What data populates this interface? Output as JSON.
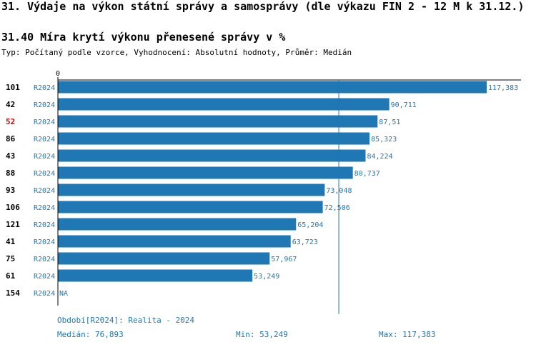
{
  "header": {
    "title": "31. Výdaje na výkon státní správy a samosprávy (dle výkazu FIN 2 - 12 M k 31.12.)",
    "subtitle": "31.40 Míra krytí výkonu přenesené správy v %",
    "meta": "Typ: Počítaný podle vzorce, Vyhodnocení: Absolutní hodnoty, Průměr: Medián"
  },
  "chart_data": {
    "type": "bar",
    "orientation": "horizontal",
    "axis_zero_label": "0",
    "xlim": [
      0,
      117.383
    ],
    "median_line": 76.893,
    "bars": [
      {
        "id": "101",
        "period": "R2024",
        "value": 117.383,
        "label": "117,383",
        "highlight": false
      },
      {
        "id": "42",
        "period": "R2024",
        "value": 90.711,
        "label": "90,711",
        "highlight": false
      },
      {
        "id": "52",
        "period": "R2024",
        "value": 87.51,
        "label": "87,51",
        "highlight": true
      },
      {
        "id": "86",
        "period": "R2024",
        "value": 85.323,
        "label": "85,323",
        "highlight": false
      },
      {
        "id": "43",
        "period": "R2024",
        "value": 84.224,
        "label": "84,224",
        "highlight": false
      },
      {
        "id": "88",
        "period": "R2024",
        "value": 80.737,
        "label": "80,737",
        "highlight": false
      },
      {
        "id": "93",
        "period": "R2024",
        "value": 73.048,
        "label": "73,048",
        "highlight": false
      },
      {
        "id": "106",
        "period": "R2024",
        "value": 72.506,
        "label": "72,506",
        "highlight": false
      },
      {
        "id": "121",
        "period": "R2024",
        "value": 65.204,
        "label": "65,204",
        "highlight": false
      },
      {
        "id": "41",
        "period": "R2024",
        "value": 63.723,
        "label": "63,723",
        "highlight": false
      },
      {
        "id": "75",
        "period": "R2024",
        "value": 57.967,
        "label": "57,967",
        "highlight": false
      },
      {
        "id": "61",
        "period": "R2024",
        "value": 53.249,
        "label": "53,249",
        "highlight": false
      },
      {
        "id": "154",
        "period": "R2024",
        "value": null,
        "label": "NA",
        "highlight": false
      }
    ],
    "colors": {
      "bar": "#1f77b4",
      "text_blue": "#1f77b4",
      "highlight": "#cc0000",
      "axis": "#000000",
      "median": "#1f77b4"
    }
  },
  "footer": {
    "period": "Období[R2024]: Realita - 2024",
    "median": "Medián: 76,893",
    "min": "Min: 53,249",
    "max": "Max: 117,383"
  }
}
